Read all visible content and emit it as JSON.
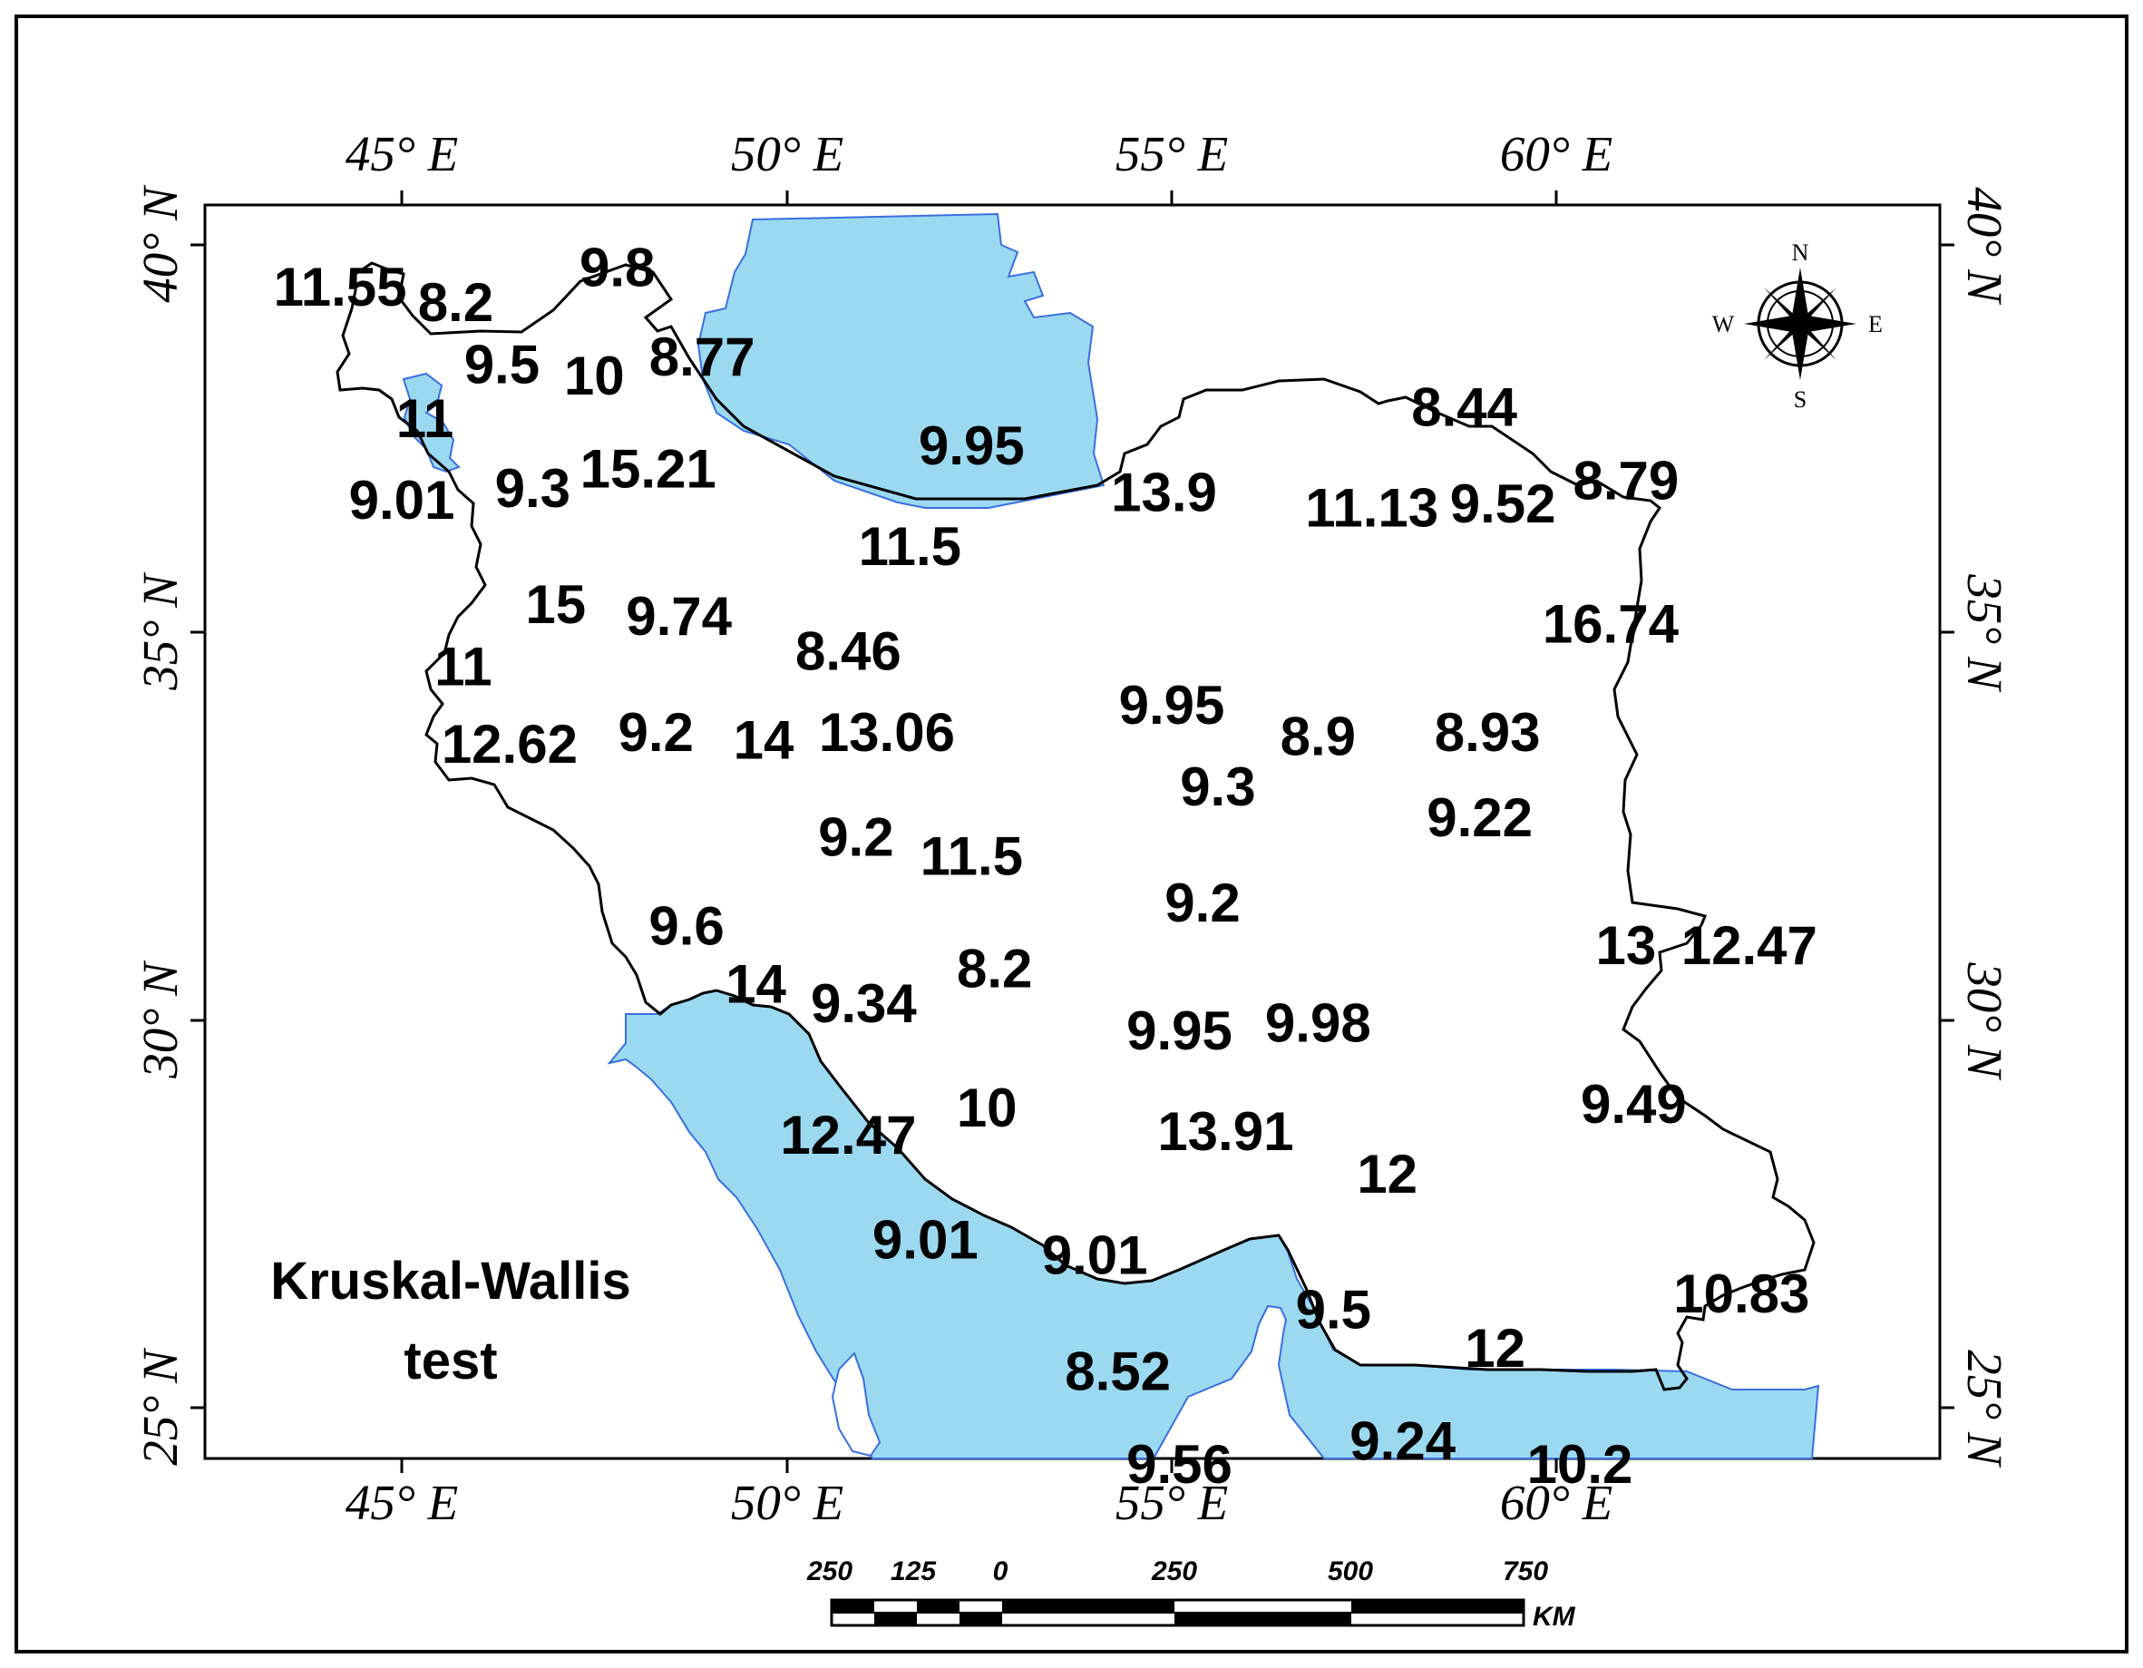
{
  "map": {
    "title_line1": "Kruskal-Wallis",
    "title_line2": "test",
    "colors": {
      "water": "#9bd9f0",
      "water_edge": "#3a6fe0",
      "border": "#000000",
      "land": "#ffffff"
    },
    "longitude_labels": [
      "45° E",
      "50° E",
      "55° E",
      "60° E"
    ],
    "latitude_labels": [
      "40° N",
      "35° N",
      "30° N",
      "25° N"
    ],
    "compass": {
      "n": "N",
      "s": "S",
      "e": "E",
      "w": "W",
      "icon": "compass-rose-icon"
    },
    "scale_bar": {
      "ticks": [
        "250",
        "125",
        "0",
        "250",
        "500",
        "750"
      ],
      "unit": "KM"
    },
    "stations": [
      {
        "value": "11.55",
        "lon": 44.2,
        "lat": 39.45
      },
      {
        "value": "8.2",
        "lon": 45.7,
        "lat": 39.25
      },
      {
        "value": "9.8",
        "lon": 47.8,
        "lat": 39.7
      },
      {
        "value": "9.5",
        "lon": 46.3,
        "lat": 38.45
      },
      {
        "value": "10",
        "lon": 47.5,
        "lat": 38.3
      },
      {
        "value": "8.77",
        "lon": 48.9,
        "lat": 38.55
      },
      {
        "value": "11",
        "lon": 45.3,
        "lat": 37.75
      },
      {
        "value": "9.01",
        "lon": 45.0,
        "lat": 36.7
      },
      {
        "value": "9.3",
        "lon": 46.7,
        "lat": 36.85
      },
      {
        "value": "15.21",
        "lon": 48.2,
        "lat": 37.1
      },
      {
        "value": "9.95",
        "lon": 52.4,
        "lat": 37.4
      },
      {
        "value": "11.5",
        "lon": 51.6,
        "lat": 36.1
      },
      {
        "value": "15",
        "lon": 47.0,
        "lat": 35.35
      },
      {
        "value": "9.74",
        "lon": 48.6,
        "lat": 35.2
      },
      {
        "value": "8.46",
        "lon": 50.8,
        "lat": 34.75
      },
      {
        "value": "11",
        "lon": 45.8,
        "lat": 34.55
      },
      {
        "value": "12.62",
        "lon": 46.4,
        "lat": 33.55
      },
      {
        "value": "9.2",
        "lon": 48.3,
        "lat": 33.7
      },
      {
        "value": "14",
        "lon": 49.7,
        "lat": 33.6
      },
      {
        "value": "13.06",
        "lon": 51.3,
        "lat": 33.7
      },
      {
        "value": "13.9",
        "lon": 54.9,
        "lat": 36.8
      },
      {
        "value": "11.13",
        "lon": 57.6,
        "lat": 36.6
      },
      {
        "value": "9.52",
        "lon": 59.3,
        "lat": 36.65
      },
      {
        "value": "8.44",
        "lon": 58.8,
        "lat": 37.9
      },
      {
        "value": "8.79",
        "lon": 60.9,
        "lat": 36.95
      },
      {
        "value": "16.74",
        "lon": 60.7,
        "lat": 35.1
      },
      {
        "value": "9.95",
        "lon": 55.0,
        "lat": 34.05
      },
      {
        "value": "8.9",
        "lon": 56.9,
        "lat": 33.65
      },
      {
        "value": "8.93",
        "lon": 59.1,
        "lat": 33.7
      },
      {
        "value": "9.3",
        "lon": 55.6,
        "lat": 33.0
      },
      {
        "value": "9.22",
        "lon": 59.0,
        "lat": 32.6
      },
      {
        "value": "9.2",
        "lon": 50.9,
        "lat": 32.35
      },
      {
        "value": "11.5",
        "lon": 52.4,
        "lat": 32.1
      },
      {
        "value": "9.2",
        "lon": 55.4,
        "lat": 31.5
      },
      {
        "value": "13",
        "lon": 60.9,
        "lat": 30.95
      },
      {
        "value": "12.47",
        "lon": 62.5,
        "lat": 30.95
      },
      {
        "value": "9.6",
        "lon": 48.7,
        "lat": 31.2
      },
      {
        "value": "14",
        "lon": 49.6,
        "lat": 30.45
      },
      {
        "value": "9.34",
        "lon": 51.0,
        "lat": 30.2
      },
      {
        "value": "8.2",
        "lon": 52.7,
        "lat": 30.65
      },
      {
        "value": "9.95",
        "lon": 55.1,
        "lat": 29.85
      },
      {
        "value": "9.98",
        "lon": 56.9,
        "lat": 29.95
      },
      {
        "value": "10",
        "lon": 52.6,
        "lat": 28.85
      },
      {
        "value": "12.47",
        "lon": 50.8,
        "lat": 28.5
      },
      {
        "value": "13.91",
        "lon": 55.7,
        "lat": 28.55
      },
      {
        "value": "12",
        "lon": 57.8,
        "lat": 28.0
      },
      {
        "value": "9.49",
        "lon": 61.0,
        "lat": 28.9
      },
      {
        "value": "9.01",
        "lon": 51.8,
        "lat": 27.15
      },
      {
        "value": "9.01",
        "lon": 54.0,
        "lat": 26.95
      },
      {
        "value": "9.5",
        "lon": 57.1,
        "lat": 26.25
      },
      {
        "value": "10.83",
        "lon": 62.4,
        "lat": 26.45
      },
      {
        "value": "12",
        "lon": 59.2,
        "lat": 25.75
      },
      {
        "value": "8.52",
        "lon": 54.3,
        "lat": 25.45
      },
      {
        "value": "9.24",
        "lon": 58.0,
        "lat": 24.55
      },
      {
        "value": "9.56",
        "lon": 55.1,
        "lat": 24.25
      },
      {
        "value": "10.2",
        "lon": 60.3,
        "lat": 24.25
      }
    ]
  }
}
